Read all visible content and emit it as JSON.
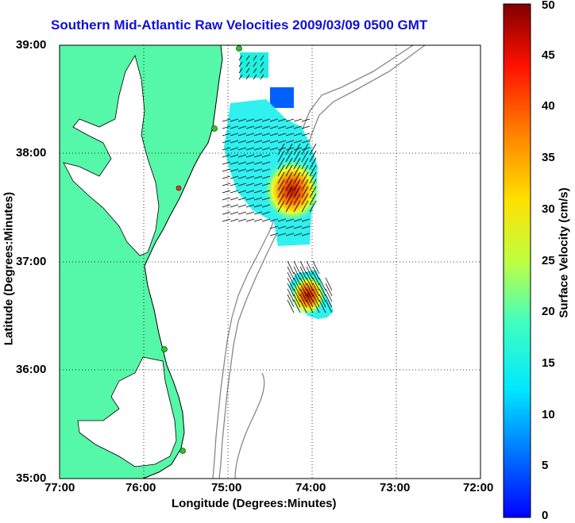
{
  "title": "Southern Mid-Atlantic Raw Velocities 2009/03/09 0500 GMT",
  "xlabel": "Longitude (Degrees:Minutes)",
  "ylabel": "Latitude (Degrees:Minutes)",
  "colorbar_label": "Surface Velocity (cm/s)",
  "x_ticks": [
    "77:00",
    "76:00",
    "75:00",
    "74:00",
    "73:00",
    "72:00"
  ],
  "y_ticks": [
    "39:00",
    "38:00",
    "37:00",
    "36:00",
    "35:00"
  ],
  "colorbar_ticks": [
    "0",
    "5",
    "10",
    "15",
    "20",
    "25",
    "30",
    "35",
    "40",
    "45",
    "50"
  ],
  "colors": {
    "land": "#55f7a8",
    "title": "#1010d8",
    "bathymetry": "#888888",
    "grid": "#000000",
    "station": "#22cc22"
  },
  "map": {
    "lon_range": [
      -77,
      -72
    ],
    "lat_range": [
      35,
      39
    ],
    "colorbar_range": [
      0,
      50
    ],
    "grid": "dotted",
    "colormap": "jet"
  }
}
